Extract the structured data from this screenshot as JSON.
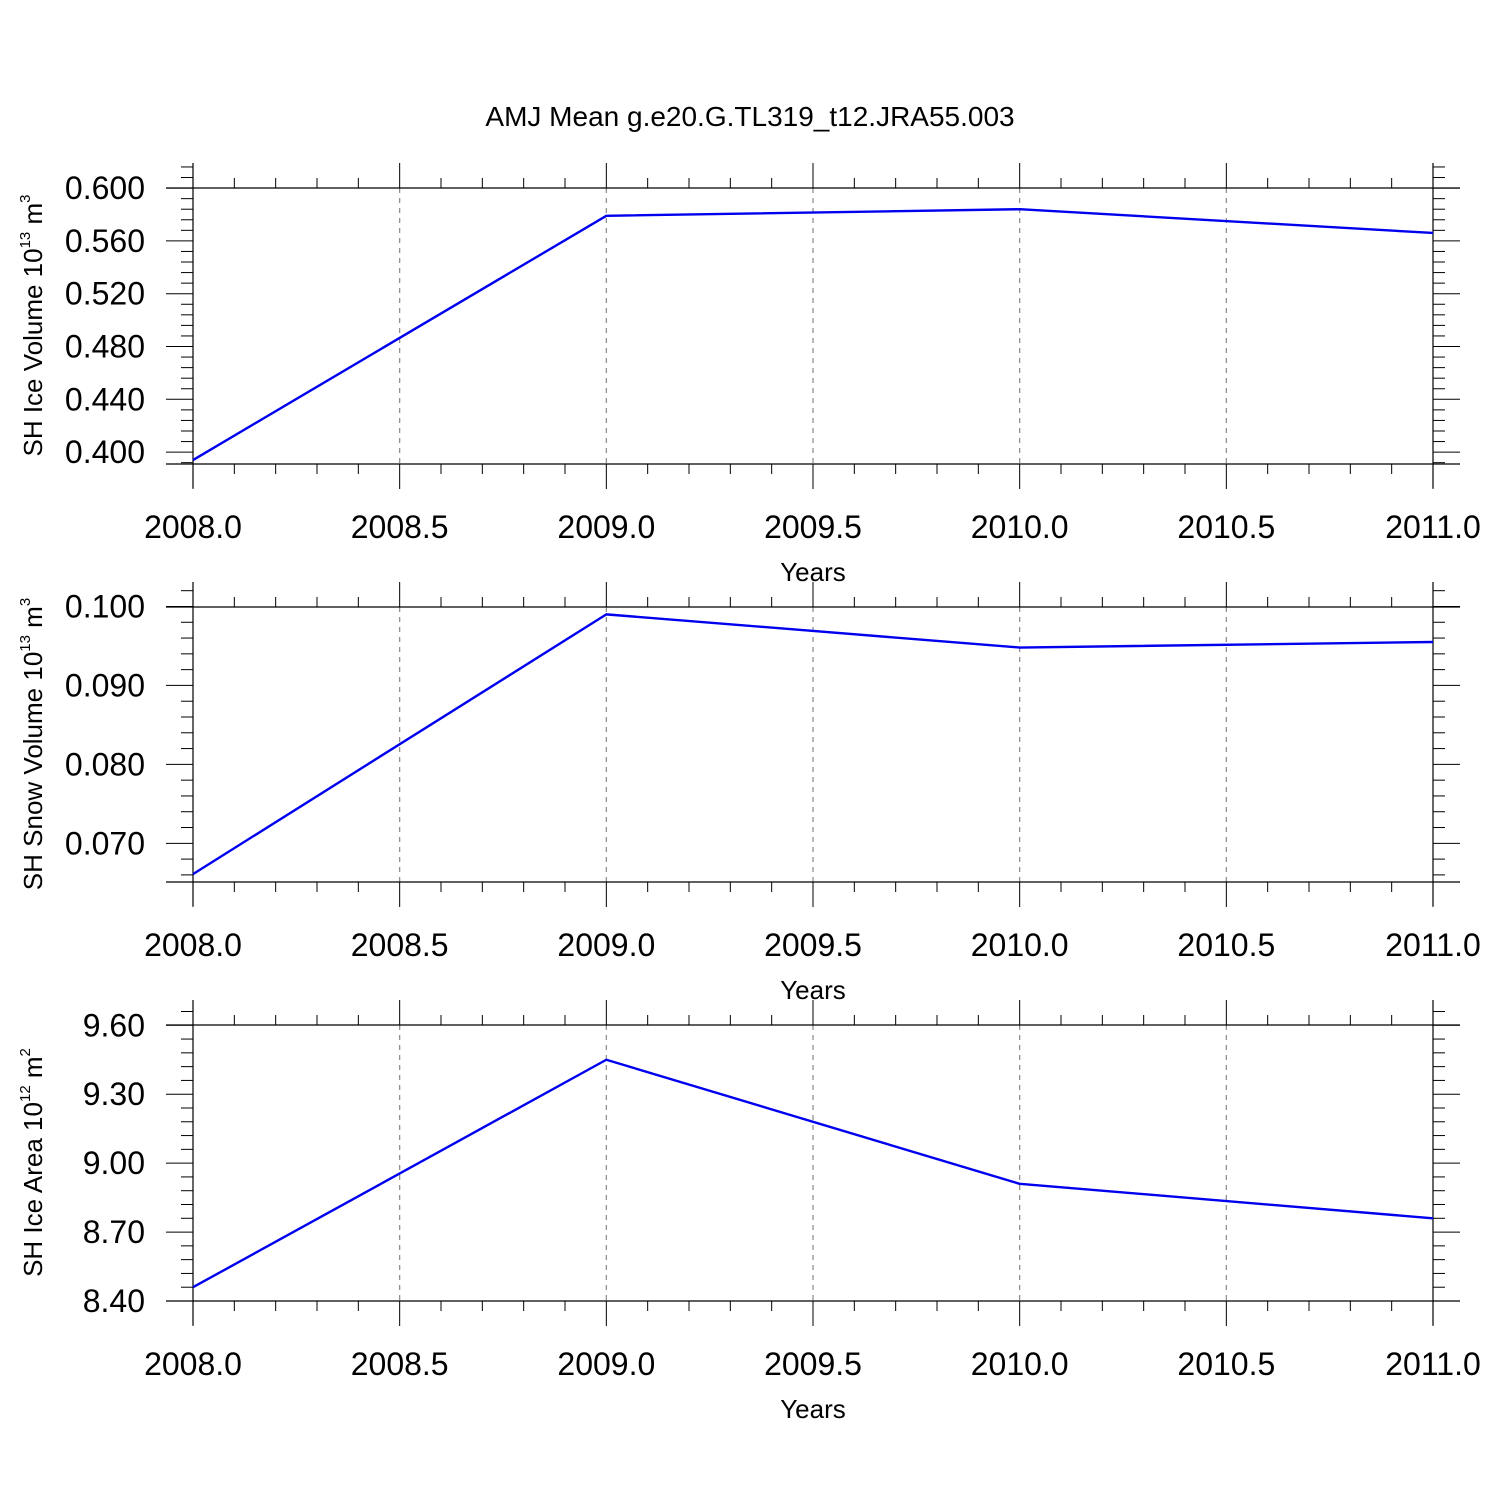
{
  "title": "AMJ Mean g.e20.G.TL319_t12.JRA55.003",
  "colors": {
    "series": "#0000ee"
  },
  "chart_data": [
    {
      "type": "line",
      "xlabel": "Years",
      "ylabel": {
        "base": "SH Ice Volume 10",
        "exp": "13",
        "unit": " m",
        "unit_exp": "3"
      },
      "x": [
        2008.0,
        2009.0,
        2010.0,
        2011.0
      ],
      "y": [
        0.394,
        0.579,
        0.584,
        0.566
      ],
      "xlim": [
        2008.0,
        2011.0
      ],
      "ylim": [
        0.391,
        0.619
      ],
      "xticks": [
        "2008.0",
        "2008.5",
        "2009.0",
        "2009.5",
        "2010.0",
        "2010.5",
        "2011.0"
      ],
      "yticks": [
        "0.400",
        "0.440",
        "0.480",
        "0.520",
        "0.560",
        "0.600"
      ],
      "grid": "vertical dashed"
    },
    {
      "type": "line",
      "xlabel": "Years",
      "ylabel": {
        "base": "SH Snow Volume 10",
        "exp": "13",
        "unit": " m",
        "unit_exp": "3"
      },
      "x": [
        2008.0,
        2009.0,
        2010.0,
        2011.0
      ],
      "y": [
        0.0661,
        0.099,
        0.0948,
        0.0955
      ],
      "xlim": [
        2008.0,
        2011.0
      ],
      "ylim": [
        0.0651,
        0.1031
      ],
      "xticks": [
        "2008.0",
        "2008.5",
        "2009.0",
        "2009.5",
        "2010.0",
        "2010.5",
        "2011.0"
      ],
      "yticks": [
        "0.070",
        "0.080",
        "0.090",
        "0.100"
      ],
      "grid": "vertical dashed"
    },
    {
      "type": "line",
      "xlabel": "Years",
      "ylabel": {
        "base": "SH Ice Area 10",
        "exp": "12",
        "unit": " m",
        "unit_exp": "2"
      },
      "x": [
        2008.0,
        2009.0,
        2010.0,
        2011.0
      ],
      "y": [
        8.46,
        9.45,
        8.91,
        8.76
      ],
      "xlim": [
        2008.0,
        2011.0
      ],
      "ylim": [
        8.4,
        9.71
      ],
      "xticks": [
        "2008.0",
        "2008.5",
        "2009.0",
        "2009.5",
        "2010.0",
        "2010.5",
        "2011.0"
      ],
      "yticks": [
        "8.40",
        "8.70",
        "9.00",
        "9.30",
        "9.60"
      ],
      "grid": "vertical dashed"
    }
  ]
}
